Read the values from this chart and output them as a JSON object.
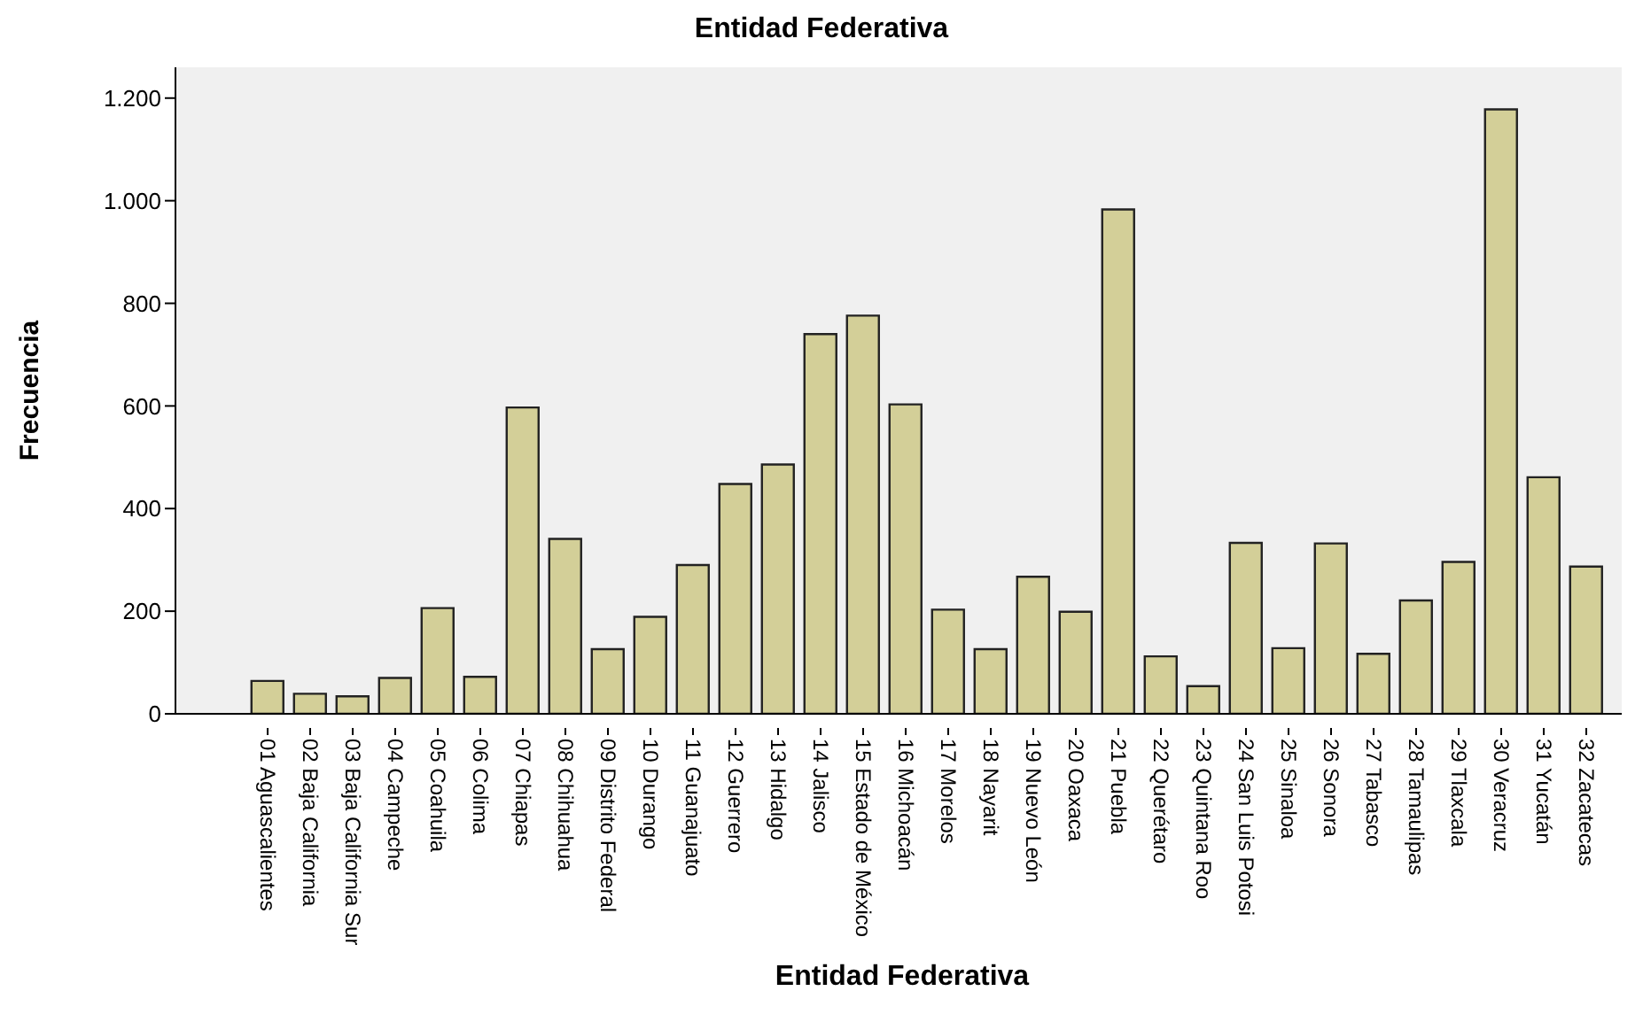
{
  "chart_data": {
    "type": "bar",
    "title": "Entidad Federativa",
    "xlabel": "Entidad Federativa",
    "ylabel": "Frecuencia",
    "categories": [
      "01 Aguascalientes",
      "02 Baja California",
      "03 Baja California Sur",
      "04 Campeche",
      "05 Coahuila",
      "06 Colima",
      "07 Chiapas",
      "08 Chihuahua",
      "09 Distrito Federal",
      "10 Durango",
      "11 Guanajuato",
      "12 Guerrero",
      "13 Hidalgo",
      "14 Jalisco",
      "15 Estado de México",
      "16 Michoacán",
      "17 Morelos",
      "18 Nayarit",
      "19 Nuevo León",
      "20 Oaxaca",
      "21 Puebla",
      "22 Querétaro",
      "23 Quintana Roo",
      "24 San Luis Potosi",
      "25 Sinaloa",
      "26 Sonora",
      "27 Tabasco",
      "28 Tamaulipas",
      "29 Tlaxcala",
      "30 Veracruz",
      "31 Yucatán",
      "32 Zacatecas"
    ],
    "values": [
      64,
      39,
      34,
      70,
      206,
      72,
      597,
      341,
      126,
      189,
      290,
      448,
      486,
      740,
      776,
      603,
      203,
      126,
      267,
      199,
      983,
      112,
      54,
      333,
      128,
      332,
      117,
      221,
      296,
      1178,
      461,
      287
    ],
    "color": "#d3cf98",
    "ylim": [
      0,
      1260
    ],
    "yticks": [
      0,
      200,
      400,
      600,
      800,
      {
        "value": 1000,
        "label": "1.000"
      },
      {
        "value": 1200,
        "label": "1.200"
      }
    ],
    "grid": false,
    "legend": false
  }
}
